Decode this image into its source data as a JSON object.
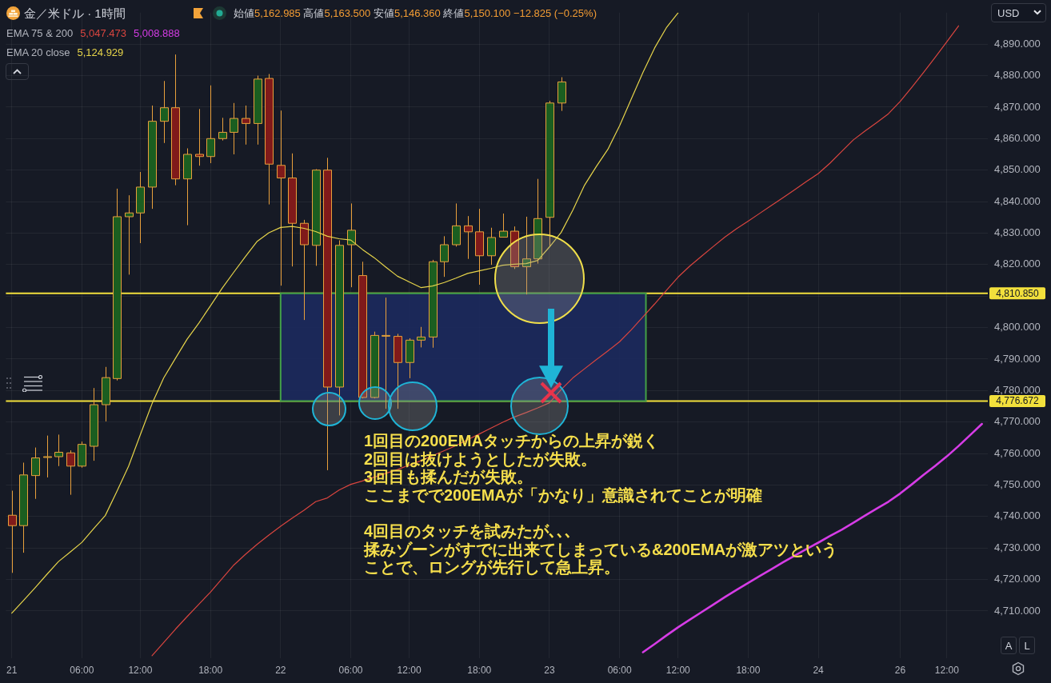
{
  "chart_data": {
    "type": "candlestick",
    "title": "金／米ドル · 1時間",
    "subtitle": "始値5,162.985 高値5,163.500 安値5,146.360 終値5,150.100 −12.825 (−0.25%)",
    "annotations": [
      "EMA 75 & 200",
      "5,047.473",
      "5,008.888",
      "EMA 20 close",
      "5,124.929",
      "1回目の200EMAタッチからの上昇が鋭く",
      "2回目は抜けようとしたが失敗。",
      "3回目も揉んだが失敗。",
      "ここまでで200EMAが「かなり」意識されてことが明確",
      "4回目のタッチを試みたが､､､",
      "揉みゾーンがすでに出来てしまっている&200EMAが激アツという",
      "ことで、ロングが先行して急上昇。",
      "USD",
      "A",
      "L"
    ],
    "categories": [
      "21",
      null,
      null,
      null,
      null,
      null,
      "06:00",
      null,
      null,
      null,
      null,
      "12:00",
      null,
      null,
      null,
      null,
      null,
      "18:00",
      null,
      null,
      null,
      null,
      null,
      "22",
      null,
      null,
      null,
      null,
      null,
      "06:00",
      null,
      null,
      null,
      null,
      "12:00",
      null,
      null,
      null,
      null,
      null,
      "18:00",
      null,
      null,
      null,
      null,
      null,
      "23",
      null,
      null,
      null,
      null,
      null,
      "06:00",
      null,
      null,
      null,
      null,
      "12:00",
      null,
      null,
      null,
      null,
      null,
      "18:00",
      null,
      null,
      null,
      null,
      null,
      "24",
      null,
      null,
      null,
      null,
      null,
      null,
      "26",
      null,
      null,
      null,
      "12:00",
      null,
      null,
      null
    ],
    "ylim": [
      4695,
      4900
    ],
    "yticks": [
      {
        "value": 4710,
        "label": "4,710.000"
      },
      {
        "value": 4720,
        "label": "4,720.000"
      },
      {
        "value": 4730,
        "label": "4,730.000"
      },
      {
        "value": 4740,
        "label": "4,740.000"
      },
      {
        "value": 4750,
        "label": "4,750.000"
      },
      {
        "value": 4760,
        "label": "4,760.000"
      },
      {
        "value": 4770,
        "label": "4,770.000"
      },
      {
        "value": 4780,
        "label": "4,780.000"
      },
      {
        "value": 4790,
        "label": "4,790.000"
      },
      {
        "value": 4800,
        "label": "4,800.000"
      },
      {
        "value": 4810,
        "label": null
      },
      {
        "value": 4820,
        "label": "4,820.000"
      },
      {
        "value": 4830,
        "label": "4,830.000"
      },
      {
        "value": 4840,
        "label": "4,840.000"
      },
      {
        "value": 4850,
        "label": "4,850.000"
      },
      {
        "value": 4860,
        "label": "4,860.000"
      },
      {
        "value": 4870,
        "label": "4,870.000"
      },
      {
        "value": 4880,
        "label": "4,880.000"
      },
      {
        "value": 4890,
        "label": "4,890.000"
      }
    ],
    "grid": true,
    "ref_lines": [
      {
        "axis": "y",
        "value": 4810.85,
        "label": "4,810.850",
        "color": "#f2e03c"
      },
      {
        "axis": "y",
        "value": 4776.672,
        "label": "4,776.672",
        "color": "#f2e03c"
      }
    ],
    "bands": [
      {
        "axis": "y",
        "from": 4776.672,
        "to": 4810.85,
        "color": "#1c2a5e"
      }
    ],
    "series": [
      {
        "ohlc": [
          [
            4740.4,
            4748.2,
            4722.1,
            4737.1
          ],
          [
            4737.1,
            4757.1,
            4728.5,
            4753.2
          ],
          [
            4753.0,
            4761.9,
            4745.6,
            4758.6
          ],
          [
            4758.8,
            4765.7,
            4752.4,
            4759.0
          ],
          [
            4759.0,
            4766.0,
            4756.0,
            4760.4
          ],
          [
            4760.2,
            4761.0,
            4746.9,
            4756.0
          ],
          [
            4756.0,
            4763.8,
            4755.5,
            4762.9
          ],
          [
            4762.3,
            4780.8,
            4757.7,
            4775.5
          ],
          [
            4775.5,
            4787.5,
            4770.2,
            4784.1
          ],
          [
            4783.8,
            4844.1,
            4783.2,
            4835.2
          ],
          [
            4835.2,
            4842.0,
            4816.8,
            4836.4
          ],
          [
            4836.4,
            4849.4,
            4826.8,
            4844.6
          ],
          [
            4844.6,
            4870.5,
            4837.7,
            4865.5
          ],
          [
            4865.5,
            4878.3,
            4858.6,
            4869.8
          ],
          [
            4869.8,
            4886.7,
            4845.2,
            4847.2
          ],
          [
            4847.2,
            4856.9,
            4832.5,
            4855.0
          ],
          [
            4855.0,
            4869.4,
            4851.4,
            4854.3
          ],
          [
            4854.3,
            4876.9,
            4852.2,
            4860.0
          ],
          [
            4860.0,
            4866.6,
            4859.4,
            4862.0
          ],
          [
            4862.0,
            4871.3,
            4855.0,
            4866.4
          ],
          [
            4866.4,
            4870.5,
            4858.1,
            4864.8
          ],
          [
            4864.8,
            4880.0,
            4858.1,
            4878.9
          ],
          [
            4879.1,
            4880.5,
            4839.1,
            4851.9
          ],
          [
            4851.5,
            4868.9,
            4813.3,
            4847.5
          ],
          [
            4847.5,
            4855.3,
            4819.4,
            4833.1
          ],
          [
            4833.1,
            4834.2,
            4802.4,
            4826.3
          ],
          [
            4826.1,
            4850.3,
            4819.6,
            4850.0
          ],
          [
            4850.0,
            4853.9,
            4754.7,
            4781.1
          ],
          [
            4781.1,
            4827.7,
            4772.1,
            4826.1
          ],
          [
            4826.3,
            4839.4,
            4812.8,
            4830.9
          ],
          [
            4816.5,
            4820.9,
            4777.5,
            4777.8
          ],
          [
            4777.8,
            4798.7,
            4777.5,
            4797.5
          ],
          [
            4797.5,
            4809.5,
            4774.2,
            4797.5
          ],
          [
            4797.2,
            4798.0,
            4774.2,
            4788.9
          ],
          [
            4788.9,
            4796.6,
            4783.9,
            4796.0
          ],
          [
            4796.0,
            4800.2,
            4793.7,
            4797.0
          ],
          [
            4797.0,
            4821.5,
            4793.6,
            4820.9
          ],
          [
            4820.9,
            4829.0,
            4816.1,
            4826.3
          ],
          [
            4826.3,
            4839.4,
            4825.7,
            4832.3
          ],
          [
            4832.3,
            4835.4,
            4821.8,
            4830.4
          ],
          [
            4830.4,
            4837.7,
            4813.6,
            4822.8
          ],
          [
            4822.8,
            4831.7,
            4819.9,
            4828.6
          ],
          [
            4828.7,
            4836.2,
            4828.6,
            4830.6
          ],
          [
            4830.6,
            4832.1,
            4818.6,
            4819.3
          ],
          [
            4819.3,
            4835.2,
            4810.5,
            4821.8
          ],
          [
            4821.8,
            4847.2,
            4820.3,
            4834.6
          ],
          [
            4835.0,
            4872.0,
            4825.7,
            4871.3
          ],
          [
            4871.3,
            4879.5,
            4868.8,
            4878.0
          ],
          null,
          null,
          null,
          null,
          null,
          null,
          null,
          null,
          null,
          null,
          null,
          null,
          null,
          null,
          null,
          null,
          null,
          null,
          null,
          null,
          null,
          null,
          null,
          null,
          null,
          null,
          null,
          null,
          null,
          null,
          null,
          null,
          null,
          null,
          null,
          null
        ],
        "colors": [
          "#801a1a",
          "#1b5e20",
          "#1b5e20",
          "#1b5e20",
          "#1b5e20",
          "#801a1a",
          "#1b5e20",
          "#1b5e20",
          "#1b5e20",
          "#1b5e20",
          "#1b5e20",
          "#1b5e20",
          "#1b5e20",
          "#1b5e20",
          "#801a1a",
          "#1b5e20",
          "#801a1a",
          "#1b5e20",
          "#1b5e20",
          "#1b5e20",
          "#801a1a",
          "#1b5e20",
          "#801a1a",
          "#801a1a",
          "#801a1a",
          "#801a1a",
          "#1b5e20",
          "#801a1a",
          "#1b5e20",
          "#1b5e20",
          "#801a1a",
          "#1b5e20",
          "#1b5e20",
          "#801a1a",
          "#1b5e20",
          "#1b5e20",
          "#1b5e20",
          "#1b5e20",
          "#1b5e20",
          "#801a1a",
          "#801a1a",
          "#1b5e20",
          "#1b5e20",
          "#801a1a",
          "#1b5e20",
          "#1b5e20",
          "#1b5e20",
          "#1b5e20",
          null,
          null,
          null,
          null,
          null,
          null,
          null,
          null,
          null,
          null,
          null,
          null,
          null,
          null,
          null,
          null,
          null,
          null,
          null,
          null,
          null,
          null,
          null,
          null,
          null,
          null,
          null,
          null,
          null,
          null,
          null,
          null,
          null,
          null,
          null,
          null
        ],
        "color": "#e9a03c"
      },
      {
        "type": "line",
        "color": "#e6d44a",
        "values": [
          4709.3,
          4713.3,
          4717.4,
          4721.6,
          4725.7,
          4728.7,
          4731.8,
          4736.1,
          4740.3,
          4748.0,
          4756.0,
          4766.0,
          4775.8,
          4784.0,
          4790.2,
          4796.3,
          4801.4,
          4806.9,
          4812.5,
          4817.6,
          4822.6,
          4827.4,
          4830.1,
          4831.8,
          4832.1,
          4831.5,
          4830.5,
          4829.0,
          4828.2,
          4827.8,
          4824.8,
          4822.2,
          4819.2,
          4816.3,
          4814.5,
          4812.7,
          4813.2,
          4814.3,
          4815.7,
          4817.2,
          4818.0,
          4818.8,
          4819.8,
          4820.1,
          4820.3,
          4821.3,
          4825.6,
          4830.2,
          4837.3,
          4845.2,
          4851.1,
          4856.6,
          4864.1,
          4872.6,
          4881.0,
          4888.8,
          4895.2,
          4899.9,
          null,
          null,
          null,
          null,
          null,
          null,
          null,
          null,
          null,
          null,
          null,
          null,
          null,
          null,
          null,
          null,
          null,
          null,
          null,
          null,
          null,
          null,
          null,
          null,
          null,
          null
        ]
      },
      {
        "type": "line",
        "color": "#d9453f",
        "values": [
          null,
          null,
          null,
          null,
          null,
          null,
          null,
          null,
          null,
          null,
          null,
          null,
          4695.8,
          4700.0,
          4704.2,
          4708.2,
          4712.1,
          4716.0,
          4720.3,
          4724.6,
          4728.0,
          4731.2,
          4734.1,
          4736.9,
          4739.5,
          4742.0,
          4744.7,
          4745.9,
          4748.4,
          4750.2,
          4751.3,
          4752.5,
          4753.7,
          4754.9,
          4756.3,
          4757.7,
          4759.3,
          4760.9,
          4762.5,
          4764.4,
          4766.2,
          4768.1,
          4769.9,
          4771.6,
          4773.0,
          4774.5,
          4776.1,
          4780.3,
          4784.0,
          4786.9,
          4789.8,
          4792.6,
          4795.5,
          4799.3,
          4803.4,
          4807.5,
          4811.8,
          4816.0,
          4819.5,
          4822.6,
          4825.7,
          4828.7,
          4831.4,
          4833.8,
          4836.3,
          4838.8,
          4841.3,
          4843.8,
          4846.4,
          4848.9,
          4852.2,
          4855.9,
          4859.6,
          4862.4,
          4865.1,
          4867.9,
          4871.8,
          4876.3,
          4881.0,
          4885.8,
          4890.8,
          4895.8,
          null,
          null
        ]
      },
      {
        "type": "line",
        "color": "#d63ce6",
        "values": [
          null,
          null,
          null,
          null,
          null,
          null,
          null,
          null,
          null,
          null,
          null,
          null,
          null,
          null,
          null,
          null,
          null,
          null,
          null,
          null,
          null,
          null,
          null,
          null,
          null,
          null,
          null,
          null,
          null,
          null,
          null,
          null,
          null,
          null,
          null,
          null,
          null,
          null,
          null,
          null,
          null,
          null,
          null,
          null,
          null,
          null,
          null,
          null,
          null,
          null,
          null,
          null,
          null,
          null,
          4696.9,
          4699.5,
          4702.2,
          4704.8,
          4707.2,
          4709.6,
          4712.0,
          4714.4,
          4716.7,
          4718.9,
          4721.1,
          4723.3,
          4725.5,
          4727.6,
          4729.7,
          4731.7,
          4733.8,
          4735.8,
          4738.0,
          4740.3,
          4742.5,
          4744.7,
          4747.3,
          4750.2,
          4753.2,
          4756.1,
          4759.1,
          4762.4,
          4765.9,
          4769.4
        ]
      }
    ]
  }
}
